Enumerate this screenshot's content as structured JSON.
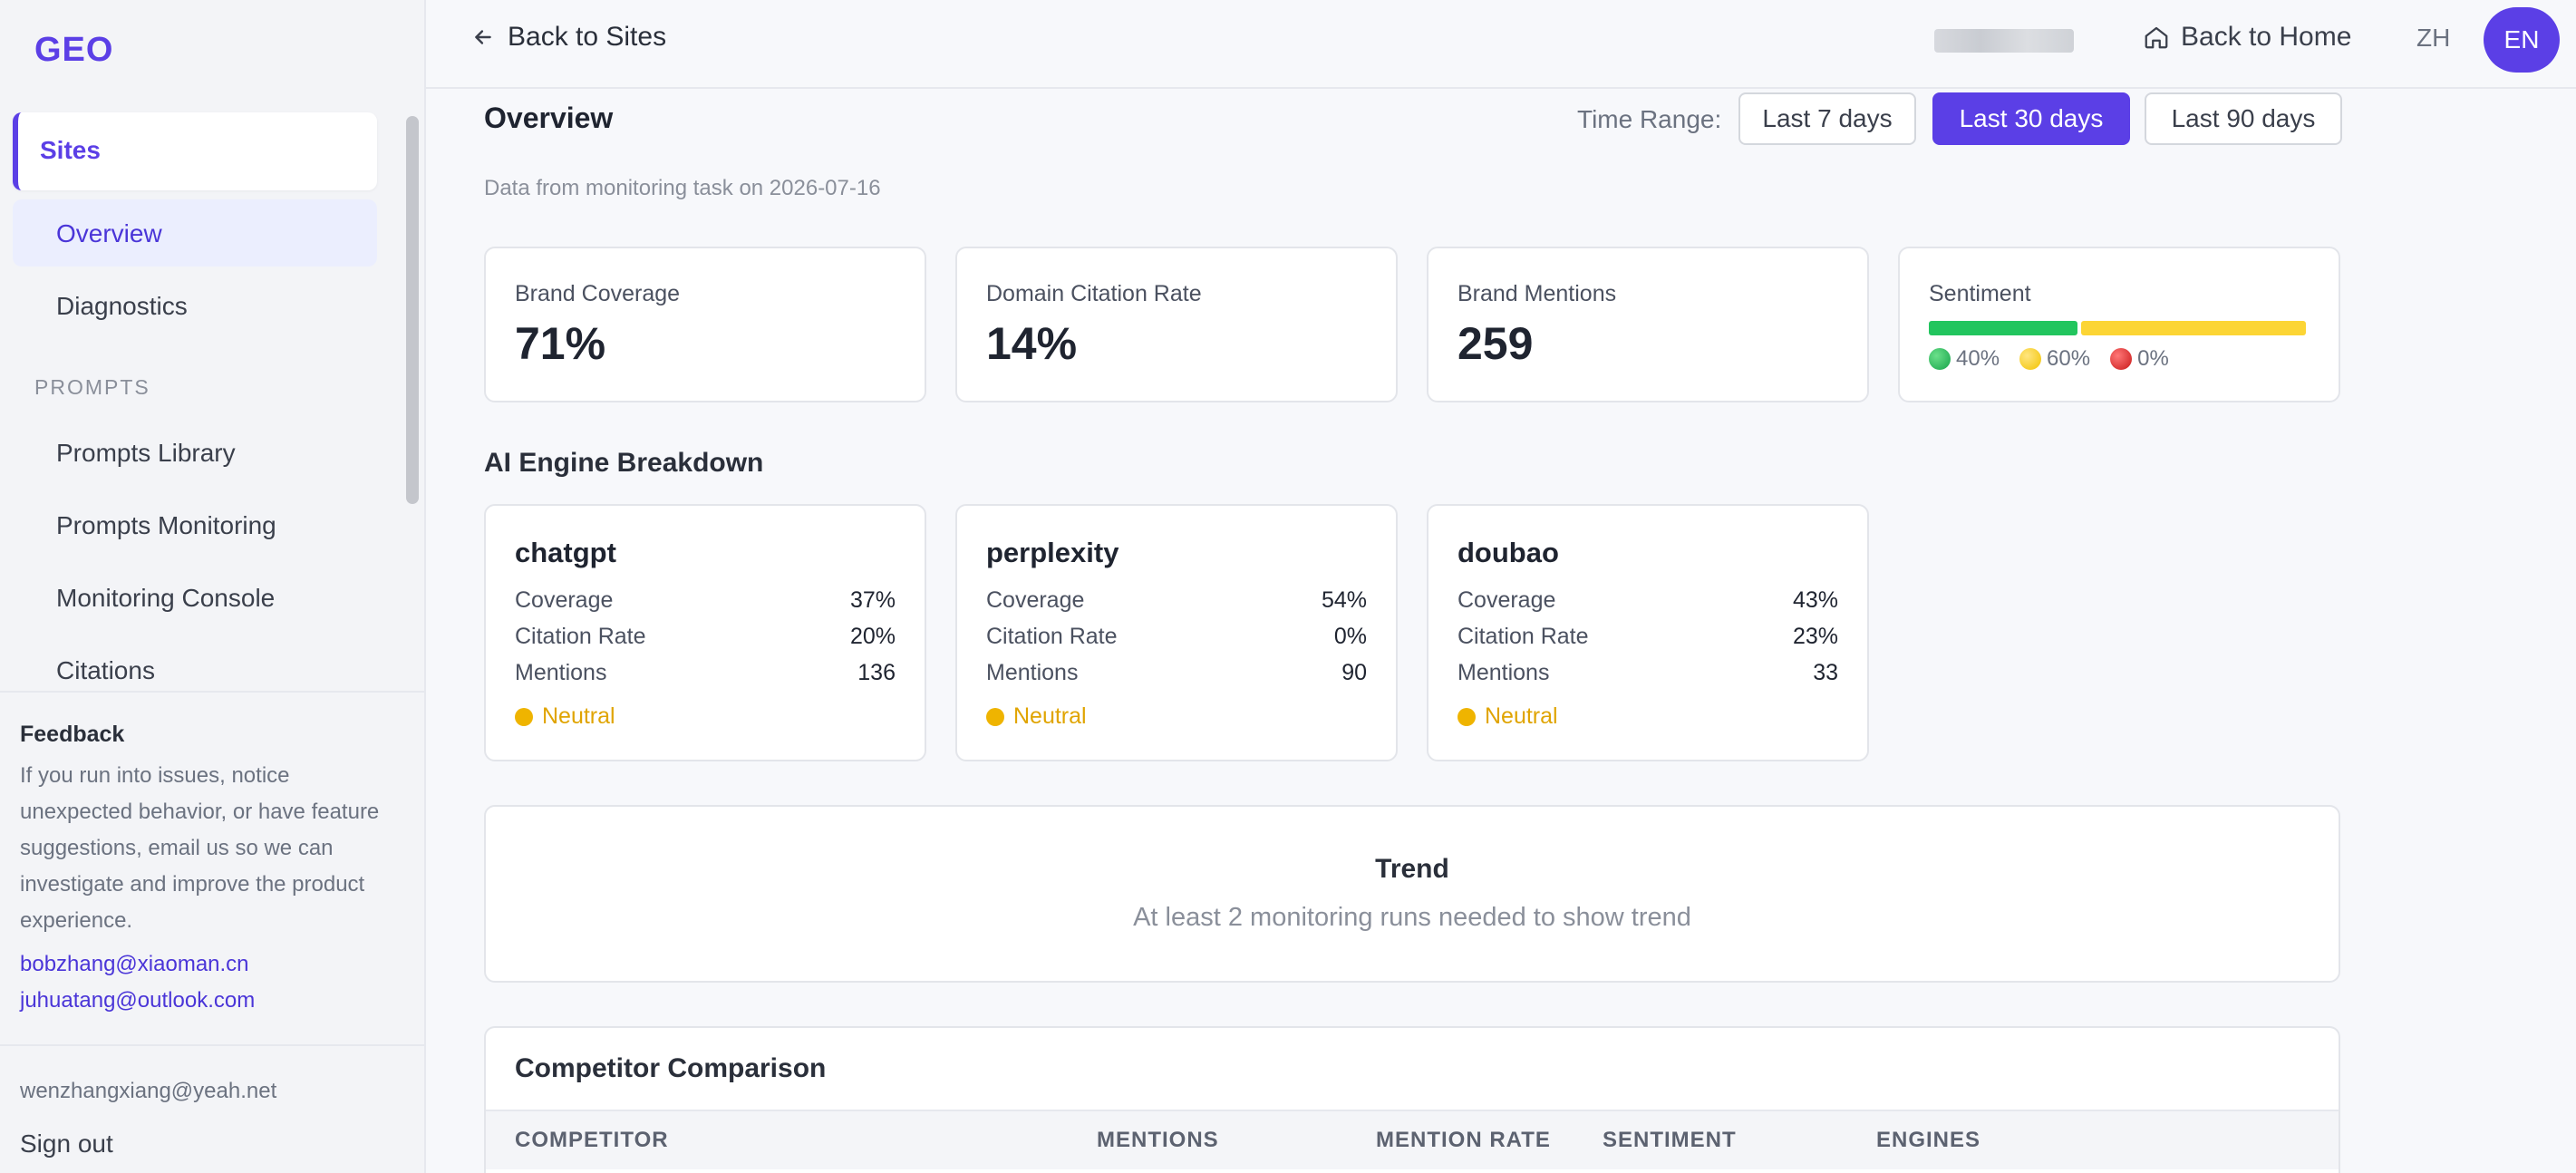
{
  "app": {
    "logo": "GEO"
  },
  "sidebar": {
    "sites_label": "Sites",
    "items": [
      {
        "label": "Overview",
        "active": true
      },
      {
        "label": "Diagnostics",
        "active": false
      }
    ],
    "prompts_section": "PROMPTS",
    "prompt_items": [
      {
        "label": "Prompts Library"
      },
      {
        "label": "Prompts Monitoring"
      },
      {
        "label": "Monitoring Console"
      },
      {
        "label": "Citations"
      }
    ],
    "feedback": {
      "title": "Feedback",
      "text": "If you run into issues, notice unexpected behavior, or have feature suggestions, email us so we can investigate and improve the product experience.",
      "emails": [
        "bobzhang@xiaoman.cn",
        "juhuatang@outlook.com"
      ]
    },
    "account": {
      "email": "wenzhangxiang@yeah.net",
      "signout": "Sign out"
    }
  },
  "topbar": {
    "back_sites": "Back to Sites",
    "back_home": "Back to Home",
    "lang_zh": "ZH",
    "lang_en": "EN"
  },
  "main": {
    "title": "Overview",
    "time_range_label": "Time Range:",
    "ranges": [
      {
        "label": "Last 7 days",
        "active": false
      },
      {
        "label": "Last 30 days",
        "active": true
      },
      {
        "label": "Last 90 days",
        "active": false
      }
    ],
    "data_note": "Data from monitoring task on 2026-07-16",
    "metrics": [
      {
        "label": "Brand Coverage",
        "value": "71%"
      },
      {
        "label": "Domain Citation Rate",
        "value": "14%"
      },
      {
        "label": "Brand Mentions",
        "value": "259"
      }
    ],
    "sentiment": {
      "label": "Sentiment",
      "positive": "40%",
      "neutral": "60%",
      "negative": "0%",
      "positive_fraction": 0.4,
      "neutral_fraction": 0.6,
      "negative_fraction": 0.0,
      "colors": {
        "positive": "#22c55e",
        "neutral": "#fcd535",
        "negative": "#dc2626"
      }
    },
    "engines_title": "AI Engine Breakdown",
    "engines": [
      {
        "name": "chatgpt",
        "coverage_label": "Coverage",
        "coverage": "37%",
        "citation_label": "Citation Rate",
        "citation": "20%",
        "mentions_label": "Mentions",
        "mentions": "136",
        "sentiment": "Neutral"
      },
      {
        "name": "perplexity",
        "coverage_label": "Coverage",
        "coverage": "54%",
        "citation_label": "Citation Rate",
        "citation": "0%",
        "mentions_label": "Mentions",
        "mentions": "90",
        "sentiment": "Neutral"
      },
      {
        "name": "doubao",
        "coverage_label": "Coverage",
        "coverage": "43%",
        "citation_label": "Citation Rate",
        "citation": "23%",
        "mentions_label": "Mentions",
        "mentions": "33",
        "sentiment": "Neutral"
      }
    ],
    "trend": {
      "title": "Trend",
      "message": "At least 2 monitoring runs needed to show trend"
    },
    "competitors": {
      "title": "Competitor Comparison",
      "columns": [
        "COMPETITOR",
        "MENTIONS",
        "MENTION RATE",
        "SENTIMENT",
        "ENGINES"
      ]
    }
  },
  "colors": {
    "accent": "#5b3fe6",
    "neutral_sentiment": "#efb400"
  }
}
